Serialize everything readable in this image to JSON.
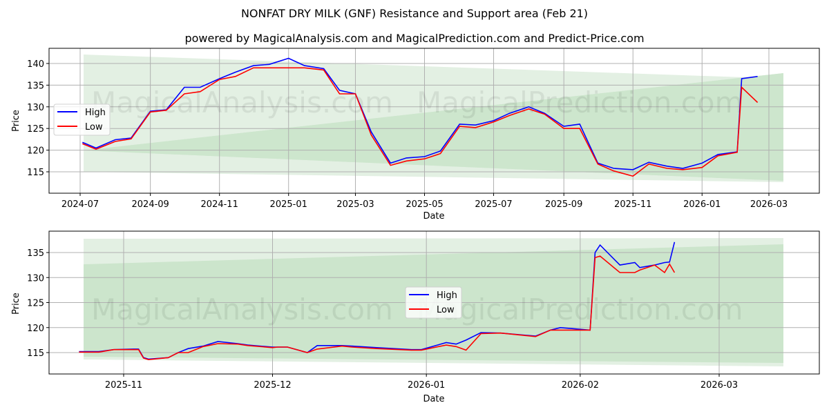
{
  "header": {
    "title": "NONFAT DRY MILK (GNF) Resistance and Support area (Feb 21)",
    "subtitle": "powered by MagicalAnalysis.com and MagicalPrediction.com and Predict-Price.com"
  },
  "watermarks": [
    "MagicalAnalysis.com",
    "MagicalPrediction.com"
  ],
  "colors": {
    "high": "#0000ff",
    "low": "#ff0000",
    "band_light": "#e3f0e3",
    "band_dark": "#cce5cc",
    "grid": "#b0b0b0"
  },
  "chart_data": [
    {
      "type": "line",
      "title": "NONFAT DRY MILK (GNF) Resistance and Support area (Feb 21)",
      "xlabel": "Date",
      "ylabel": "Price",
      "ylim": [
        110.5,
        143.5
      ],
      "grid": true,
      "legend_position": "center left",
      "legend": [
        "High",
        "Low"
      ],
      "x_ticks": [
        "2024-07",
        "2024-09",
        "2024-11",
        "2025-01",
        "2025-03",
        "2025-05",
        "2025-07",
        "2025-09",
        "2025-11",
        "2026-01",
        "2026-03"
      ],
      "y_ticks": [
        115,
        120,
        125,
        130,
        135,
        140
      ],
      "x": [
        "2024-07-03",
        "2024-07-15",
        "2024-08-01",
        "2024-08-15",
        "2024-09-01",
        "2024-09-15",
        "2024-10-01",
        "2024-10-15",
        "2024-11-01",
        "2024-11-15",
        "2024-12-01",
        "2024-12-15",
        "2025-01-01",
        "2025-01-15",
        "2025-02-01",
        "2025-02-15",
        "2025-03-01",
        "2025-03-15",
        "2025-04-01",
        "2025-04-15",
        "2025-05-01",
        "2025-05-15",
        "2025-06-01",
        "2025-06-15",
        "2025-07-01",
        "2025-07-15",
        "2025-08-01",
        "2025-08-15",
        "2025-09-01",
        "2025-09-15",
        "2025-10-01",
        "2025-10-15",
        "2025-11-01",
        "2025-11-15",
        "2025-12-01",
        "2025-12-15",
        "2026-01-01",
        "2026-01-15",
        "2026-02-01",
        "2026-02-05",
        "2026-02-19"
      ],
      "series": [
        {
          "name": "High",
          "values": [
            121.8,
            120.5,
            122.4,
            122.8,
            129.0,
            129.3,
            134.5,
            134.5,
            136.5,
            138.0,
            139.5,
            139.8,
            141.2,
            139.5,
            138.8,
            133.8,
            133.0,
            124.2,
            117.0,
            118.2,
            118.5,
            119.8,
            126.0,
            125.8,
            126.8,
            128.5,
            130.0,
            128.5,
            125.5,
            126.0,
            117.0,
            115.8,
            115.5,
            117.2,
            116.3,
            115.8,
            117.0,
            119.0,
            119.6,
            136.5,
            137.0
          ]
        },
        {
          "name": "Low",
          "values": [
            121.5,
            120.2,
            122.0,
            122.6,
            128.8,
            129.2,
            133.0,
            133.5,
            136.3,
            137.0,
            139.0,
            139.0,
            139.0,
            139.0,
            138.5,
            133.0,
            133.0,
            123.5,
            116.5,
            117.5,
            118.0,
            119.2,
            125.5,
            125.2,
            126.5,
            128.0,
            129.5,
            128.3,
            125.0,
            125.0,
            116.8,
            115.2,
            114.0,
            116.8,
            115.8,
            115.5,
            116.0,
            118.7,
            119.5,
            134.5,
            131.0
          ]
        },
        {
          "name": "Resistance band (light)",
          "values_start": [
            115.0,
            142.0
          ],
          "values_end": [
            113.0,
            137.8
          ]
        },
        {
          "name": "Support band (dark)",
          "values_start": [
            118.0,
            118.0
          ],
          "values_end": [
            112.5,
            136.7
          ]
        }
      ]
    },
    {
      "type": "line",
      "title": "",
      "xlabel": "Date",
      "ylabel": "Price",
      "ylim": [
        110.5,
        139.3
      ],
      "grid": true,
      "legend_position": "center",
      "legend": [
        "High",
        "Low"
      ],
      "x_ticks": [
        "2025-11",
        "2025-12",
        "2026-01",
        "2026-02",
        "2026-03"
      ],
      "y_ticks": [
        115,
        120,
        125,
        130,
        135
      ],
      "x": [
        "2025-10-23",
        "2025-10-27",
        "2025-10-30",
        "2025-11-03",
        "2025-11-04",
        "2025-11-05",
        "2025-11-06",
        "2025-11-10",
        "2025-11-12",
        "2025-11-14",
        "2025-11-17",
        "2025-11-20",
        "2025-11-24",
        "2025-11-26",
        "2025-12-01",
        "2025-12-02",
        "2025-12-04",
        "2025-12-08",
        "2025-12-10",
        "2025-12-15",
        "2025-12-17",
        "2025-12-22",
        "2025-12-29",
        "2025-12-31",
        "2026-01-05",
        "2026-01-07",
        "2026-01-09",
        "2026-01-12",
        "2026-01-16",
        "2026-01-23",
        "2026-01-26",
        "2026-01-28",
        "2026-02-03",
        "2026-02-04",
        "2026-02-05",
        "2026-02-09",
        "2026-02-12",
        "2026-02-13",
        "2026-02-16",
        "2026-02-18",
        "2026-02-19",
        "2026-02-20"
      ],
      "series": [
        {
          "name": "High",
          "values": [
            115.2,
            115.2,
            115.6,
            115.7,
            115.7,
            114.0,
            113.7,
            114.0,
            115.0,
            115.8,
            116.3,
            117.2,
            116.8,
            116.5,
            116.1,
            116.1,
            116.1,
            115.0,
            116.4,
            116.4,
            116.3,
            116.0,
            115.6,
            115.6,
            117.0,
            116.7,
            117.5,
            119.0,
            118.9,
            118.3,
            119.5,
            120.0,
            119.5,
            135.0,
            136.5,
            132.5,
            133.0,
            132.0,
            132.5,
            133.0,
            133.1,
            137.1
          ]
        },
        {
          "name": "Low",
          "values": [
            115.1,
            115.1,
            115.6,
            115.6,
            115.6,
            113.9,
            113.6,
            114.0,
            115.0,
            115.0,
            116.2,
            116.8,
            116.7,
            116.4,
            116.0,
            116.1,
            116.1,
            115.0,
            115.7,
            116.3,
            116.1,
            115.8,
            115.5,
            115.5,
            116.5,
            116.2,
            115.5,
            118.8,
            118.9,
            118.2,
            119.5,
            119.5,
            119.5,
            134.0,
            134.3,
            131.0,
            131.0,
            131.5,
            132.5,
            131.0,
            132.7,
            131.0
          ]
        },
        {
          "name": "Resistance band (light)",
          "values_start": [
            113.8,
            137.7
          ],
          "values_end": [
            112.5,
            137.9
          ]
        },
        {
          "name": "Support band (dark)",
          "values_start": [
            114.5,
            132.6
          ],
          "values_end": [
            112.9,
            136.5
          ]
        }
      ]
    }
  ]
}
